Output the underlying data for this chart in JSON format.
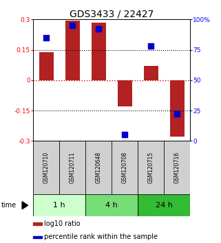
{
  "title": "GDS3433 / 22427",
  "samples": [
    "GSM120710",
    "GSM120711",
    "GSM120648",
    "GSM120708",
    "GSM120715",
    "GSM120716"
  ],
  "log10_ratio": [
    0.14,
    0.295,
    0.283,
    -0.13,
    0.072,
    -0.278
  ],
  "percentile_rank": [
    85,
    95,
    92,
    5,
    78,
    22
  ],
  "ylim_left": [
    -0.3,
    0.3
  ],
  "ylim_right": [
    0,
    100
  ],
  "yticks_left": [
    -0.3,
    -0.15,
    0,
    0.15,
    0.3
  ],
  "ytick_labels_left": [
    "-0.3",
    "-0.15",
    "0",
    "0.15",
    "0.3"
  ],
  "yticks_right": [
    0,
    25,
    50,
    75,
    100
  ],
  "ytick_labels_right": [
    "0",
    "25",
    "50",
    "75",
    "100%"
  ],
  "bar_color": "#b22222",
  "dot_color": "#0000cc",
  "zero_line_color": "#cc0000",
  "hline_color": "#000000",
  "time_groups": [
    {
      "label": "1 h",
      "start": 0,
      "end": 1,
      "color": "#ccffcc"
    },
    {
      "label": "4 h",
      "start": 2,
      "end": 3,
      "color": "#77dd77"
    },
    {
      "label": "24 h",
      "start": 4,
      "end": 5,
      "color": "#33bb33"
    }
  ],
  "legend_log10": "log10 ratio",
  "legend_pct": "percentile rank within the sample",
  "time_label": "time",
  "bar_width": 0.55,
  "dot_size": 28,
  "title_fontsize": 10,
  "tick_fontsize": 6.5,
  "sample_fontsize": 5.5,
  "legend_fontsize": 7,
  "time_fontsize": 8
}
